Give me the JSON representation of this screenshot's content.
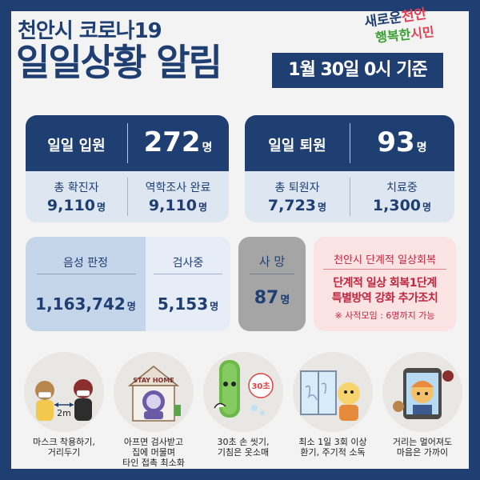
{
  "header": {
    "subtitle": "천안시 코로나19",
    "title": "일일상황 알림",
    "date": "1월 30일 0시 기준"
  },
  "logo": {
    "line1_a": "새로운",
    "line1_b": "천안",
    "line2_a": "행복한",
    "line2_b": "시민"
  },
  "admission": {
    "label": "일일 입원",
    "value": "272",
    "unit": "명",
    "confirmed_label": "총 확진자",
    "confirmed_value": "9,110",
    "epi_label": "역학조사 완료",
    "epi_value": "9,110"
  },
  "discharge": {
    "label": "일일 퇴원",
    "value": "93",
    "unit": "명",
    "total_label": "총 퇴원자",
    "total_value": "7,723",
    "treating_label": "치료중",
    "treating_value": "1,300"
  },
  "tests": {
    "negative_label": "음성 판정",
    "negative_value": "1,163,742",
    "pending_label": "검사중",
    "pending_value": "5,153",
    "unit": "명"
  },
  "deaths": {
    "label": "사 망",
    "value": "87",
    "unit": "명"
  },
  "notice": {
    "title": "천안시 단계적 일상회복",
    "line1": "단계적 일상 회복1단계",
    "line2": "특별방역 강화 추가조치",
    "note": "※ 사적모임 : 6명까지 가능"
  },
  "tips": [
    {
      "lines": [
        "마스크 착용하기,",
        "거리두기"
      ],
      "badge": "2m",
      "icon": "mask-distance-icon"
    },
    {
      "lines": [
        "아프면 검사받고",
        "집에 머물며",
        "타인 접촉 최소화"
      ],
      "badge": "STAY HOME",
      "icon": "stay-home-icon"
    },
    {
      "lines": [
        "30초 손 씻기,",
        "기침은 옷소매"
      ],
      "badge": "30초",
      "icon": "hand-wash-icon"
    },
    {
      "lines": [
        "최소 1일 3회 이상",
        "환기, 주기적 소독"
      ],
      "icon": "ventilation-icon"
    },
    {
      "lines": [
        "거리는 멀어져도",
        "마음은 가까이"
      ],
      "icon": "video-call-icon"
    }
  ],
  "colors": {
    "navy": "#1f3f73",
    "light_blue": "#dde6f1",
    "red": "#c0253e",
    "pink": "#fbe3e3",
    "gray": "#a5a5a5"
  }
}
